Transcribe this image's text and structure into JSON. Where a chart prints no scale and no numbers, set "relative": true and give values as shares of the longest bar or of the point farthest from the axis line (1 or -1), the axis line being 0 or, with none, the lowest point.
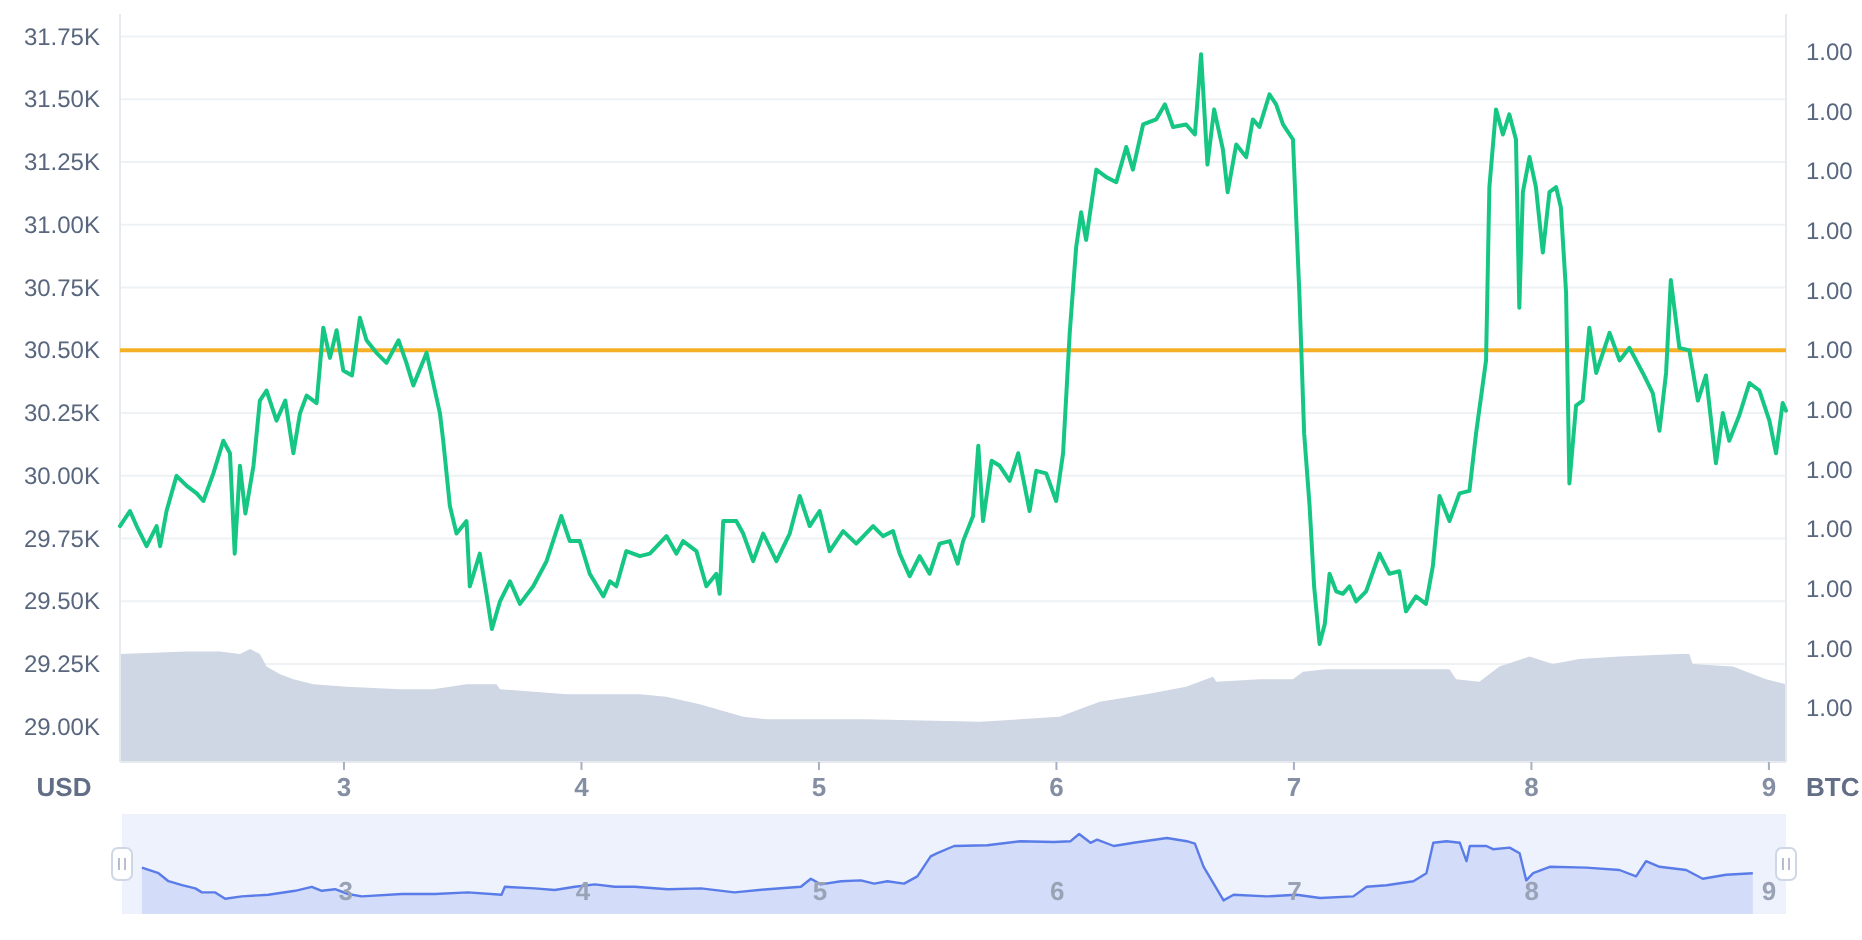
{
  "chart_data": [
    {
      "type": "line",
      "ylabel": "USD",
      "y2label": "BTC",
      "xlim": [
        2.057,
        9.072
      ],
      "xticks": [
        3,
        4,
        5,
        6,
        7,
        8,
        9
      ],
      "ylim": [
        28860,
        31840
      ],
      "yticks": [
        {
          "value": 29000,
          "label": "29.00K"
        },
        {
          "value": 29250,
          "label": "29.25K"
        },
        {
          "value": 29500,
          "label": "29.50K"
        },
        {
          "value": 29750,
          "label": "29.75K"
        },
        {
          "value": 30000,
          "label": "30.00K"
        },
        {
          "value": 30250,
          "label": "30.25K"
        },
        {
          "value": 30500,
          "label": "30.50K"
        },
        {
          "value": 30750,
          "label": "30.75K"
        },
        {
          "value": 31000,
          "label": "31.00K"
        },
        {
          "value": 31250,
          "label": "31.25K"
        },
        {
          "value": 31500,
          "label": "31.50K"
        },
        {
          "value": 31750,
          "label": "31.75K"
        }
      ],
      "y2lim": [
        0.99488,
        1.00491
      ],
      "y2ticks": [
        {
          "value": 0.9956,
          "label": "1.00"
        },
        {
          "value": 0.9964,
          "label": "1.00"
        },
        {
          "value": 0.9972,
          "label": "1.00"
        },
        {
          "value": 0.998,
          "label": "1.00"
        },
        {
          "value": 0.9988,
          "label": "1.00"
        },
        {
          "value": 0.9996,
          "label": "1.00"
        },
        {
          "value": 1.0004,
          "label": "1.00"
        },
        {
          "value": 1.0012,
          "label": "1.00"
        },
        {
          "value": 1.002,
          "label": "1.00"
        },
        {
          "value": 1.0028,
          "label": "1.00"
        },
        {
          "value": 1.0036,
          "label": "1.00"
        },
        {
          "value": 1.0044,
          "label": "1.00"
        }
      ],
      "grid": "y",
      "ref_lines": [
        {
          "axis": "y",
          "value": 30500,
          "color": "#f6b026"
        }
      ],
      "series": [
        {
          "type": "area",
          "color": "#cfd6e4",
          "x": [
            2.057,
            2.338,
            2.478,
            2.562,
            2.604,
            2.646,
            2.674,
            2.731,
            2.787,
            2.871,
            3.011,
            3.236,
            3.376,
            3.516,
            3.642,
            3.657,
            3.937,
            4.246,
            4.358,
            4.498,
            4.681,
            4.779,
            5.2,
            5.677,
            6.013,
            6.182,
            6.378,
            6.546,
            6.659,
            6.673,
            6.855,
            6.996,
            7.038,
            7.136,
            7.655,
            7.683,
            7.781,
            7.865,
            7.992,
            8.09,
            8.202,
            8.37,
            8.623,
            8.665,
            8.679,
            8.848,
            8.988,
            9.072
          ],
          "values": [
            29290,
            29300,
            29300,
            29290,
            29310,
            29290,
            29240,
            29210,
            29190,
            29170,
            29160,
            29150,
            29150,
            29170,
            29170,
            29150,
            29130,
            29130,
            29120,
            29090,
            29040,
            29030,
            29030,
            29020,
            29040,
            29100,
            29130,
            29160,
            29200,
            29180,
            29190,
            29190,
            29220,
            29230,
            29230,
            29190,
            29180,
            29240,
            29280,
            29250,
            29270,
            29280,
            29290,
            29290,
            29250,
            29240,
            29190,
            29170
          ]
        },
        {
          "type": "line",
          "color": "#16c784",
          "x": [
            2.057,
            2.099,
            2.127,
            2.169,
            2.211,
            2.226,
            2.253,
            2.295,
            2.338,
            2.38,
            2.408,
            2.45,
            2.492,
            2.52,
            2.54,
            2.562,
            2.585,
            2.619,
            2.646,
            2.674,
            2.716,
            2.753,
            2.787,
            2.815,
            2.843,
            2.885,
            2.913,
            2.941,
            2.969,
            2.997,
            3.034,
            3.067,
            3.095,
            3.137,
            3.179,
            3.23,
            3.263,
            3.292,
            3.348,
            3.404,
            3.418,
            3.446,
            3.474,
            3.516,
            3.53,
            3.572,
            3.6,
            3.623,
            3.657,
            3.699,
            3.741,
            3.797,
            3.853,
            3.915,
            3.951,
            3.993,
            4.035,
            4.092,
            4.12,
            4.147,
            4.189,
            4.246,
            4.288,
            4.358,
            4.4,
            4.428,
            4.484,
            4.526,
            4.568,
            4.582,
            4.597,
            4.652,
            4.681,
            4.723,
            4.765,
            4.821,
            4.877,
            4.919,
            4.961,
            5.003,
            5.045,
            5.102,
            5.157,
            5.228,
            5.27,
            5.312,
            5.34,
            5.382,
            5.424,
            5.466,
            5.508,
            5.551,
            5.584,
            5.607,
            5.649,
            5.671,
            5.691,
            5.727,
            5.761,
            5.803,
            5.839,
            5.887,
            5.915,
            5.957,
            5.999,
            6.028,
            6.056,
            6.083,
            6.104,
            6.125,
            6.168,
            6.21,
            6.252,
            6.294,
            6.322,
            6.365,
            6.42,
            6.457,
            6.491,
            6.546,
            6.583,
            6.609,
            6.636,
            6.664,
            6.701,
            6.721,
            6.757,
            6.799,
            6.827,
            6.855,
            6.897,
            6.925,
            6.954,
            6.996,
            7.024,
            7.043,
            7.066,
            7.085,
            7.108,
            7.13,
            7.15,
            7.178,
            7.206,
            7.234,
            7.262,
            7.304,
            7.36,
            7.402,
            7.444,
            7.472,
            7.514,
            7.556,
            7.585,
            7.613,
            7.655,
            7.697,
            7.739,
            7.767,
            7.809,
            7.823,
            7.851,
            7.88,
            7.907,
            7.935,
            7.949,
            7.964,
            7.992,
            8.019,
            8.048,
            8.076,
            8.104,
            8.124,
            8.146,
            8.16,
            8.188,
            8.216,
            8.244,
            8.273,
            8.329,
            8.371,
            8.413,
            8.469,
            8.511,
            8.539,
            8.567,
            8.587,
            8.623,
            8.665,
            8.701,
            8.735,
            8.777,
            8.806,
            8.833,
            8.875,
            8.918,
            8.96,
            9.002,
            9.03,
            9.058,
            9.072
          ],
          "values": [
            29800,
            29860,
            29800,
            29720,
            29800,
            29720,
            29860,
            30000,
            29960,
            29930,
            29900,
            30010,
            30140,
            30090,
            29690,
            30040,
            29850,
            30040,
            30300,
            30340,
            30220,
            30300,
            30090,
            30250,
            30320,
            30290,
            30590,
            30470,
            30580,
            30420,
            30400,
            30630,
            30540,
            30490,
            30450,
            30540,
            30450,
            30360,
            30490,
            30250,
            30140,
            29880,
            29770,
            29820,
            29560,
            29690,
            29530,
            29390,
            29500,
            29580,
            29490,
            29560,
            29660,
            29840,
            29740,
            29740,
            29610,
            29520,
            29580,
            29560,
            29700,
            29680,
            29690,
            29760,
            29690,
            29740,
            29700,
            29560,
            29610,
            29530,
            29820,
            29820,
            29770,
            29660,
            29770,
            29660,
            29770,
            29920,
            29800,
            29860,
            29700,
            29780,
            29730,
            29800,
            29760,
            29780,
            29690,
            29600,
            29680,
            29610,
            29730,
            29740,
            29650,
            29740,
            29840,
            30120,
            29820,
            30060,
            30040,
            29980,
            30090,
            29860,
            30020,
            30010,
            29900,
            30090,
            30570,
            30910,
            31050,
            30940,
            31220,
            31190,
            31170,
            31310,
            31220,
            31400,
            31420,
            31480,
            31390,
            31400,
            31360,
            31680,
            31240,
            31460,
            31300,
            31130,
            31320,
            31270,
            31420,
            31390,
            31520,
            31480,
            31400,
            31340,
            30700,
            30170,
            29880,
            29560,
            29330,
            29410,
            29610,
            29540,
            29530,
            29560,
            29500,
            29540,
            29690,
            29610,
            29620,
            29460,
            29520,
            29490,
            29640,
            29920,
            29820,
            29930,
            29940,
            30170,
            30460,
            31150,
            31460,
            31360,
            31440,
            31340,
            30670,
            31130,
            31270,
            31150,
            30890,
            31130,
            31150,
            31070,
            30730,
            29970,
            30280,
            30300,
            30590,
            30410,
            30570,
            30460,
            30510,
            30410,
            30330,
            30180,
            30410,
            30780,
            30510,
            30500,
            30300,
            30400,
            30050,
            30250,
            30140,
            30240,
            30370,
            30340,
            30220,
            30090,
            30290,
            30260
          ]
        }
      ]
    },
    {
      "type": "area",
      "relative": true,
      "tick_labels": "x",
      "xlim": [
        2.057,
        9.072
      ],
      "xticks": [
        3,
        4,
        5,
        6,
        7,
        8,
        9
      ],
      "color": "#5a7ce8",
      "x": [
        2.141,
        2.211,
        2.253,
        2.31,
        2.366,
        2.394,
        2.45,
        2.492,
        2.562,
        2.674,
        2.787,
        2.857,
        2.899,
        2.955,
        3.011,
        3.067,
        3.236,
        3.376,
        3.516,
        3.657,
        3.671,
        3.797,
        3.881,
        3.966,
        4.05,
        4.134,
        4.218,
        4.358,
        4.498,
        4.639,
        4.779,
        4.919,
        4.961,
        5.003,
        5.088,
        5.172,
        5.228,
        5.284,
        5.354,
        5.41,
        5.466,
        5.494,
        5.565,
        5.705,
        5.845,
        5.986,
        6.056,
        6.092,
        6.14,
        6.168,
        6.238,
        6.322,
        6.462,
        6.546,
        6.58,
        6.617,
        6.659,
        6.701,
        6.743,
        6.883,
        7.009,
        7.108,
        7.248,
        7.304,
        7.388,
        7.501,
        7.556,
        7.585,
        7.641,
        7.697,
        7.725,
        7.739,
        7.809,
        7.837,
        7.907,
        7.949,
        7.977,
        8.006,
        8.076,
        8.23,
        8.37,
        8.44,
        8.482,
        8.539,
        8.651,
        8.721,
        8.819,
        8.932
      ],
      "values": [
        0.58,
        0.51,
        0.41,
        0.36,
        0.32,
        0.27,
        0.27,
        0.19,
        0.22,
        0.24,
        0.29,
        0.34,
        0.29,
        0.31,
        0.25,
        0.22,
        0.25,
        0.25,
        0.27,
        0.24,
        0.34,
        0.32,
        0.3,
        0.34,
        0.37,
        0.34,
        0.34,
        0.31,
        0.32,
        0.27,
        0.31,
        0.34,
        0.44,
        0.37,
        0.41,
        0.42,
        0.38,
        0.41,
        0.38,
        0.47,
        0.72,
        0.76,
        0.85,
        0.86,
        0.91,
        0.9,
        0.91,
        1,
        0.89,
        0.93,
        0.85,
        0.89,
        0.95,
        0.91,
        0.88,
        0.59,
        0.38,
        0.17,
        0.24,
        0.22,
        0.24,
        0.2,
        0.22,
        0.34,
        0.36,
        0.41,
        0.51,
        0.89,
        0.91,
        0.89,
        0.66,
        0.85,
        0.85,
        0.81,
        0.83,
        0.76,
        0.42,
        0.51,
        0.59,
        0.58,
        0.55,
        0.47,
        0.66,
        0.59,
        0.55,
        0.44,
        0.49,
        0.51
      ]
    }
  ]
}
